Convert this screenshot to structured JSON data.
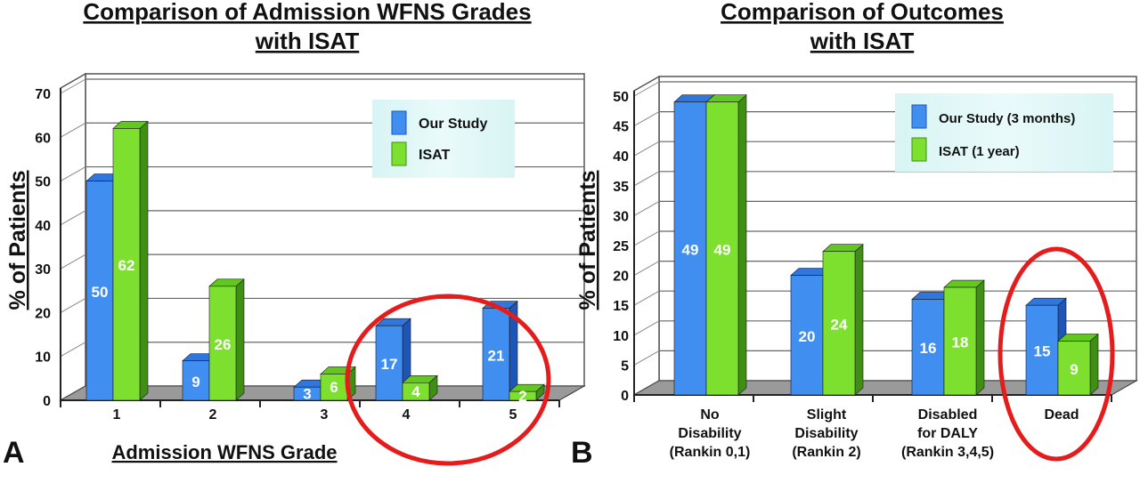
{
  "panel_a": {
    "letter": "A",
    "title_line1": "Comparison of Admission WFNS Grades",
    "title_line2": "with ISAT",
    "ylabel": "% of Patients",
    "xlabel": "Admission WFNS Grade",
    "legend": [
      "Our Study",
      "ISAT"
    ]
  },
  "panel_b": {
    "letter": "B",
    "title_line1": "Comparison of Outcomes",
    "title_line2": "with ISAT",
    "ylabel": "% of Patients",
    "legend": [
      "Our Study (3 months)",
      "ISAT (1 year)"
    ]
  },
  "colors": {
    "series1": "#3f8ef0",
    "series1_dark": "#1d56b8",
    "series1_top": "#2f76de",
    "series2": "#7ee02e",
    "series2_dark": "#3f8f14",
    "series2_top": "#62c81f",
    "circle": "#e51c1c",
    "legend_bg": "#e6f8f8"
  },
  "chart_data": [
    {
      "type": "bar",
      "title": "Comparison of Admission WFNS Grades with ISAT",
      "xlabel": "Admission WFNS Grade",
      "ylabel": "% of Patients",
      "categories": [
        "1",
        "2",
        "3",
        "4",
        "5"
      ],
      "series": [
        {
          "name": "Our Study",
          "values": [
            50,
            9,
            3,
            17,
            21
          ]
        },
        {
          "name": "ISAT",
          "values": [
            62,
            26,
            6,
            4,
            2
          ]
        }
      ],
      "ylim": [
        0,
        70
      ],
      "yticks": [
        "0",
        "10",
        "20",
        "30",
        "40",
        "50",
        "60",
        "70"
      ],
      "grid": true,
      "legend": "top-right"
    },
    {
      "type": "bar",
      "title": "Comparison of Outcomes with ISAT",
      "xlabel": "",
      "ylabel": "% of Patients",
      "categories": [
        [
          "No",
          "Disability",
          "(Rankin 0,1)"
        ],
        [
          "Slight",
          "Disability",
          "(Rankin 2)"
        ],
        [
          "Disabled",
          "for DALY",
          "(Rankin 3,4,5)"
        ],
        [
          "Dead"
        ]
      ],
      "series": [
        {
          "name": "Our Study (3 months)",
          "values": [
            49,
            20,
            16,
            15
          ]
        },
        {
          "name": "ISAT (1 year)",
          "values": [
            49,
            24,
            18,
            9
          ]
        }
      ],
      "ylim": [
        0,
        50
      ],
      "yticks": [
        "0",
        "5",
        "10",
        "15",
        "20",
        "25",
        "30",
        "35",
        "40",
        "45",
        "50"
      ],
      "grid": true,
      "legend": "top-right"
    }
  ]
}
